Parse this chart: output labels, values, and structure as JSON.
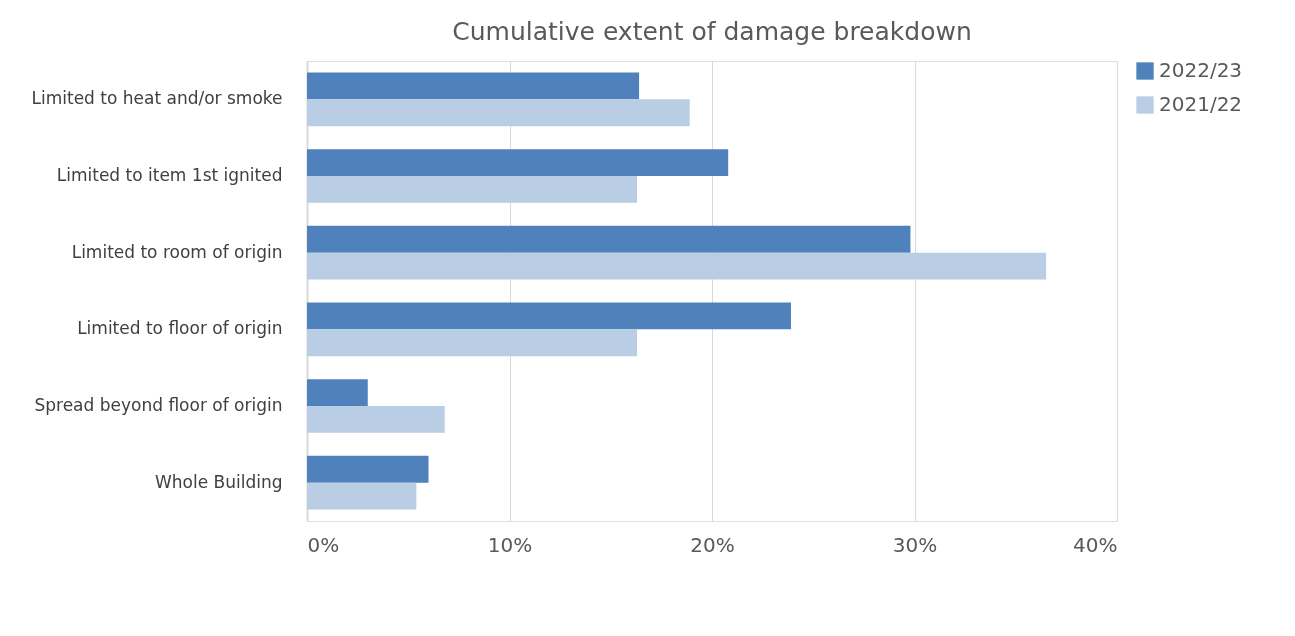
{
  "chart_data": {
    "type": "bar",
    "orientation": "horizontal",
    "title": "Cumulative extent of damage breakdown",
    "categories": [
      "Limited to heat and/or smoke",
      "Limited to item 1st ignited",
      "Limited to room of origin",
      "Limited to floor of origin",
      "Spread beyond floor of origin",
      "Whole Building"
    ],
    "series": [
      {
        "name": "2022/23",
        "color": "#4f81bd",
        "values": [
          16.4,
          20.8,
          29.8,
          23.9,
          3.0,
          6.0
        ]
      },
      {
        "name": "2021/22",
        "color": "#b9cde5",
        "values": [
          18.9,
          16.3,
          36.5,
          16.3,
          6.8,
          5.4
        ]
      }
    ],
    "xlim": [
      0,
      40
    ],
    "xticks": [
      {
        "value": 0,
        "label": "0%"
      },
      {
        "value": 10,
        "label": "10%"
      },
      {
        "value": 20,
        "label": "20%"
      },
      {
        "value": 30,
        "label": "30%"
      },
      {
        "value": 40,
        "label": "40%"
      }
    ],
    "grid": "x",
    "legend": "right"
  }
}
